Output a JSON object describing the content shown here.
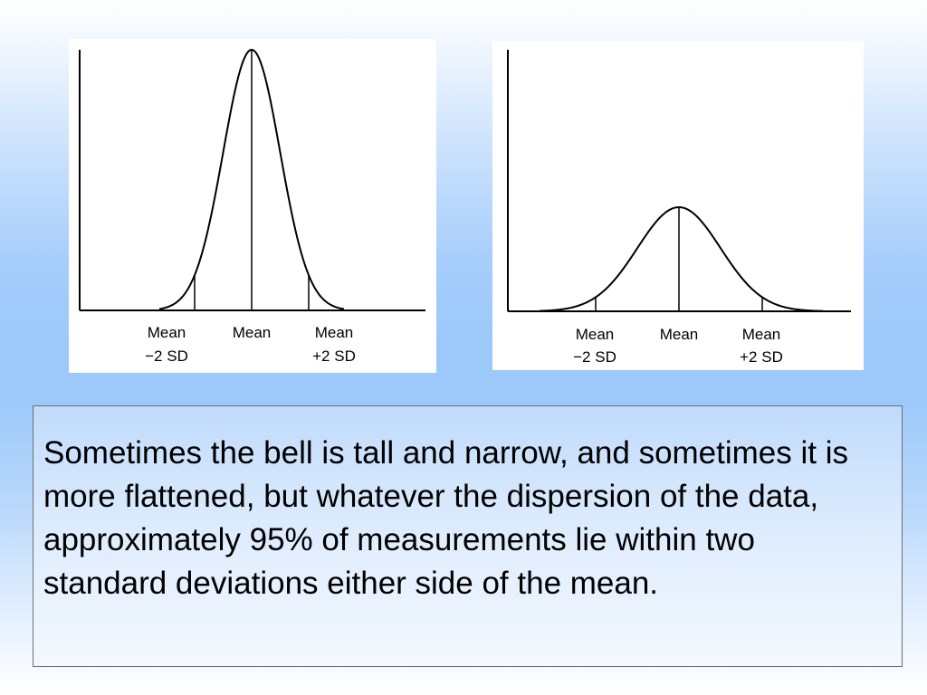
{
  "diagrams": [
    {
      "id": "tall-narrow",
      "shape": "tall and narrow",
      "labels": {
        "left": [
          "Mean",
          "−2 SD"
        ],
        "center": [
          "Mean"
        ],
        "right": [
          "Mean",
          "+2 SD"
        ]
      }
    },
    {
      "id": "flattened",
      "shape": "flattened",
      "labels": {
        "left": [
          "Mean",
          "−2 SD"
        ],
        "center": [
          "Mean"
        ],
        "right": [
          "Mean",
          "+2 SD"
        ]
      }
    }
  ],
  "caption": "Sometimes the bell is tall and narrow, and sometimes it is more flattened, but whatever the dispersion of the data, approximately 95% of measurements lie within two standard deviations either side of the mean.",
  "colors": {
    "curve": "#000000",
    "panel_background": "#ffffff",
    "caption_border": "#6f6f6f"
  }
}
